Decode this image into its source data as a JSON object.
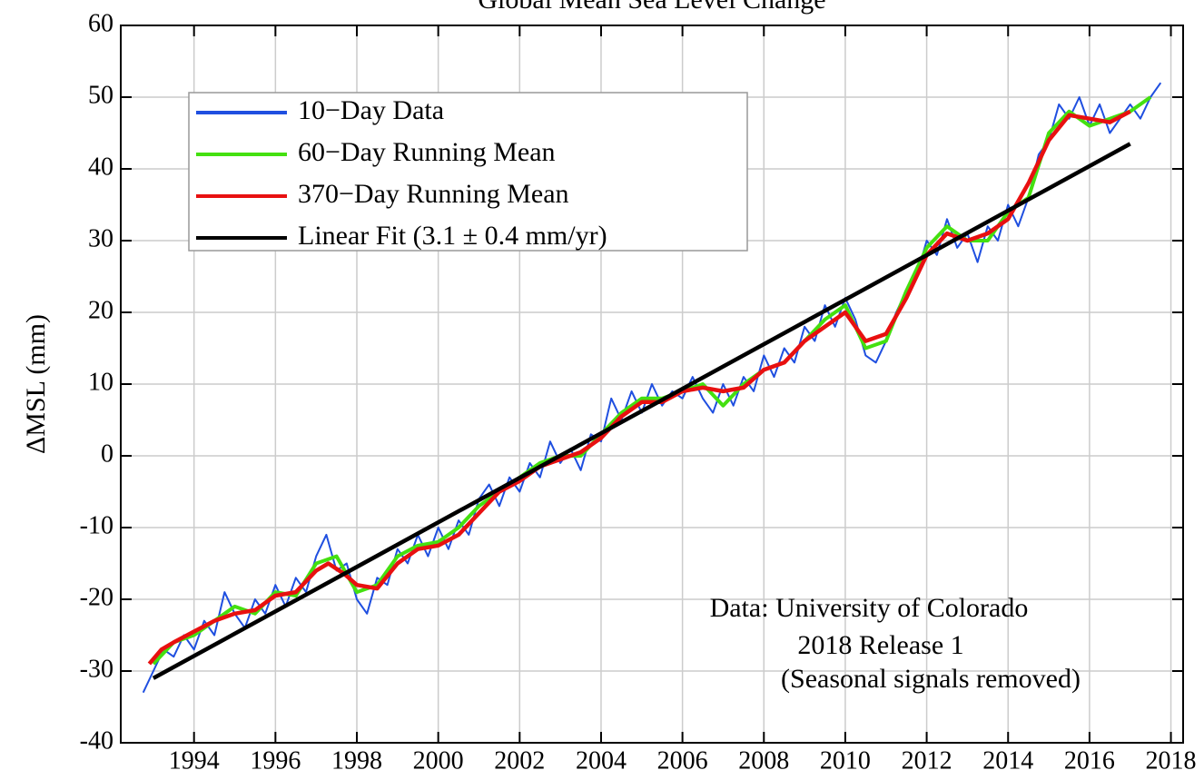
{
  "chart_data": {
    "type": "line",
    "title": "Global Mean Sea Level Change",
    "ylabel": "ΔMSL (mm)",
    "xlim": [
      1992.2,
      2018.3
    ],
    "ylim": [
      -40,
      60
    ],
    "xticks": [
      1994,
      1996,
      1998,
      2000,
      2002,
      2004,
      2006,
      2008,
      2010,
      2012,
      2014,
      2016,
      2018
    ],
    "yticks": [
      -40,
      -30,
      -20,
      -10,
      0,
      10,
      20,
      30,
      40,
      50,
      60
    ],
    "grid": true,
    "legend": "upper left",
    "annotations": [
      "Data: University of Colorado",
      "2018 Release 1",
      "(Seasonal signals removed)"
    ],
    "series": [
      {
        "name": "10−Day Data",
        "color": "#1f4fe0",
        "x": [
          1992.75,
          1993,
          1993.25,
          1993.5,
          1993.75,
          1994,
          1994.25,
          1994.5,
          1994.75,
          1995,
          1995.25,
          1995.5,
          1995.75,
          1996,
          1996.25,
          1996.5,
          1996.75,
          1997,
          1997.25,
          1997.5,
          1997.75,
          1998,
          1998.25,
          1998.5,
          1998.75,
          1999,
          1999.25,
          1999.5,
          1999.75,
          2000,
          2000.25,
          2000.5,
          2000.75,
          2001,
          2001.25,
          2001.5,
          2001.75,
          2002,
          2002.25,
          2002.5,
          2002.75,
          2003,
          2003.25,
          2003.5,
          2003.75,
          2004,
          2004.25,
          2004.5,
          2004.75,
          2005,
          2005.25,
          2005.5,
          2005.75,
          2006,
          2006.25,
          2006.5,
          2006.75,
          2007,
          2007.25,
          2007.5,
          2007.75,
          2008,
          2008.25,
          2008.5,
          2008.75,
          2009,
          2009.25,
          2009.5,
          2009.75,
          2010,
          2010.25,
          2010.5,
          2010.75,
          2011,
          2011.25,
          2011.5,
          2011.75,
          2012,
          2012.25,
          2012.5,
          2012.75,
          2013,
          2013.25,
          2013.5,
          2013.75,
          2014,
          2014.25,
          2014.5,
          2014.75,
          2015,
          2015.25,
          2015.5,
          2015.75,
          2016,
          2016.25,
          2016.5,
          2016.75,
          2017,
          2017.25,
          2017.5,
          2017.75
        ],
        "values": [
          -33,
          -30,
          -27,
          -28,
          -25,
          -27,
          -23,
          -25,
          -19,
          -22,
          -24,
          -20,
          -22,
          -18,
          -21,
          -17,
          -19,
          -14,
          -11,
          -16,
          -15,
          -20,
          -22,
          -17,
          -18,
          -13,
          -15,
          -11,
          -14,
          -10,
          -13,
          -9,
          -11,
          -6,
          -4,
          -7,
          -3,
          -5,
          -1,
          -3,
          2,
          -1,
          1,
          -2,
          3,
          2,
          8,
          5,
          9,
          6,
          10,
          7,
          9,
          8,
          11,
          8,
          6,
          10,
          7,
          11,
          9,
          14,
          11,
          15,
          13,
          18,
          16,
          21,
          18,
          22,
          19,
          14,
          13,
          16,
          20,
          23,
          25,
          30,
          28,
          33,
          29,
          31,
          27,
          32,
          30,
          35,
          32,
          36,
          42,
          44,
          49,
          47,
          50,
          46,
          49,
          45,
          47,
          49,
          47,
          50,
          52
        ]
      },
      {
        "name": "60−Day Running Mean",
        "color": "#44e010",
        "x": [
          1993,
          1993.5,
          1994,
          1994.5,
          1995,
          1995.5,
          1996,
          1996.5,
          1997,
          1997.5,
          1998,
          1998.5,
          1999,
          1999.5,
          2000,
          2000.5,
          2001,
          2001.5,
          2002,
          2002.5,
          2003,
          2003.5,
          2004,
          2004.5,
          2005,
          2005.5,
          2006,
          2006.5,
          2007,
          2007.5,
          2008,
          2008.5,
          2009,
          2009.5,
          2010,
          2010.5,
          2011,
          2011.5,
          2012,
          2012.5,
          2013,
          2013.5,
          2014,
          2014.5,
          2015,
          2015.5,
          2016,
          2016.5,
          2017,
          2017.5
        ],
        "values": [
          -29,
          -26,
          -25,
          -23,
          -21,
          -22,
          -19,
          -19.5,
          -15,
          -14,
          -19,
          -18,
          -14,
          -12.5,
          -12,
          -10,
          -7,
          -5,
          -3,
          -1,
          0,
          0,
          3,
          6,
          8,
          8,
          9,
          10,
          7,
          10,
          12,
          13,
          16,
          19,
          21,
          15,
          16,
          23,
          29,
          32,
          30,
          30,
          34,
          36,
          45,
          48,
          46,
          47,
          48,
          50
        ]
      },
      {
        "name": "370−Day Running Mean",
        "color": "#e81010",
        "x": [
          1992.9,
          1993.2,
          1993.5,
          1994,
          1994.5,
          1995,
          1995.5,
          1996,
          1996.5,
          1997,
          1997.3,
          1997.7,
          1998,
          1998.5,
          1999,
          1999.5,
          2000,
          2000.5,
          2001,
          2001.5,
          2002,
          2002.5,
          2003,
          2003.5,
          2004,
          2004.5,
          2005,
          2005.5,
          2006,
          2006.5,
          2007,
          2007.5,
          2008,
          2008.5,
          2009,
          2009.5,
          2010,
          2010.5,
          2011,
          2011.5,
          2012,
          2012.5,
          2013,
          2013.5,
          2014,
          2014.5,
          2015,
          2015.5,
          2016,
          2016.5,
          2017
        ],
        "values": [
          -29,
          -27,
          -26,
          -24.5,
          -23,
          -22,
          -21.5,
          -19.5,
          -19,
          -16,
          -15,
          -16.5,
          -18,
          -18.5,
          -15,
          -13,
          -12.5,
          -11,
          -8,
          -5,
          -3.5,
          -1.5,
          -0.5,
          0.5,
          2.5,
          5.5,
          7.5,
          7.5,
          9,
          9.5,
          9,
          9.5,
          12,
          13,
          16,
          18,
          20,
          16,
          17,
          22,
          28,
          31,
          30,
          31,
          33,
          38,
          44,
          47.5,
          47,
          46.5,
          48
        ]
      },
      {
        "name": "Linear Fit (3.1 ± 0.4 mm/yr)",
        "color": "#000000",
        "x": [
          1993,
          2017
        ],
        "values": [
          -31,
          43.5
        ]
      }
    ]
  }
}
